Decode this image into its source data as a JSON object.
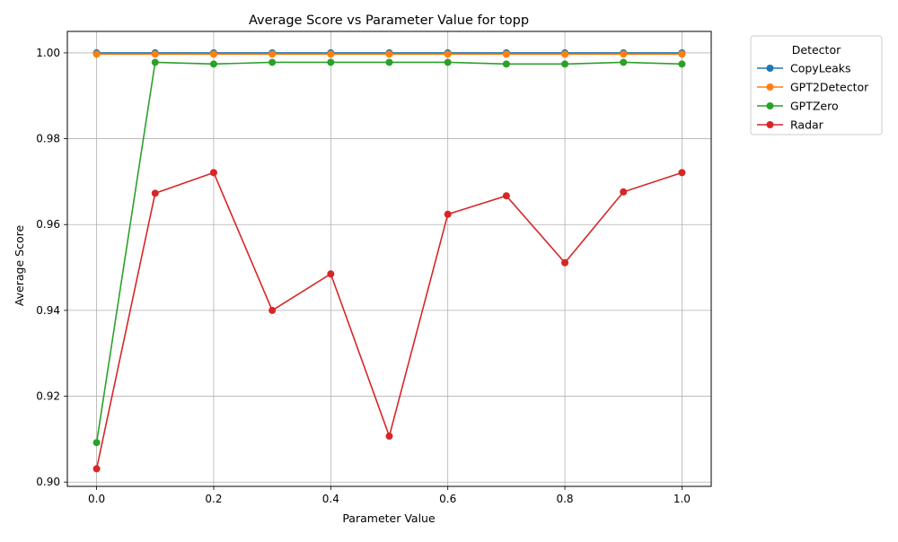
{
  "chart_data": {
    "type": "line",
    "title": "Average Score vs Parameter Value for topp",
    "xlabel": "Parameter Value",
    "ylabel": "Average Score",
    "xlim": [
      -0.05,
      1.05
    ],
    "ylim": [
      0.899,
      1.005
    ],
    "xticks": [
      0.0,
      0.2,
      0.4,
      0.6,
      0.8,
      1.0
    ],
    "xtick_labels": [
      "0.0",
      "0.2",
      "0.4",
      "0.6",
      "0.8",
      "1.0"
    ],
    "yticks": [
      0.9,
      0.92,
      0.94,
      0.96,
      0.98,
      1.0
    ],
    "ytick_labels": [
      "0.90",
      "0.92",
      "0.94",
      "0.96",
      "0.98",
      "1.00"
    ],
    "grid": true,
    "legend_title": "Detector",
    "legend_placement": "outside-top-right",
    "x": [
      0.0,
      0.1,
      0.2,
      0.3,
      0.4,
      0.5,
      0.6,
      0.7,
      0.8,
      0.9,
      1.0
    ],
    "series": [
      {
        "name": "CopyLeaks",
        "color": "#1f77b4",
        "values": [
          1.0,
          1.0,
          1.0,
          1.0,
          1.0,
          1.0,
          1.0,
          1.0,
          1.0,
          1.0,
          1.0
        ]
      },
      {
        "name": "GPT2Detector",
        "color": "#ff7f0e",
        "values": [
          0.9997,
          0.9997,
          0.9997,
          0.9997,
          0.9997,
          0.9997,
          0.9997,
          0.9997,
          0.9997,
          0.9997,
          0.9997
        ]
      },
      {
        "name": "GPTZero",
        "color": "#2ca02c",
        "values": [
          0.9092,
          0.9978,
          0.9974,
          0.9978,
          0.9978,
          0.9978,
          0.9978,
          0.9974,
          0.9974,
          0.9978,
          0.9974
        ]
      },
      {
        "name": "Radar",
        "color": "#d62728",
        "values": [
          0.9031,
          0.9673,
          0.9721,
          0.94,
          0.9485,
          0.9107,
          0.9624,
          0.9667,
          0.9511,
          0.9676,
          0.9721
        ]
      }
    ]
  }
}
